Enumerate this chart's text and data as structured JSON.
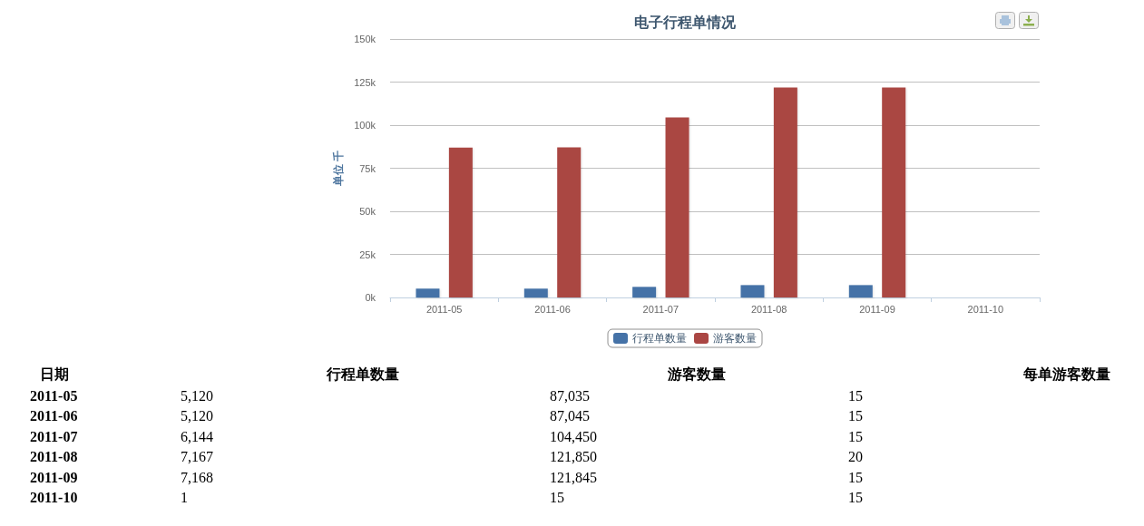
{
  "chart_data": [
    {
      "type": "bar",
      "title": "电子行程单情况",
      "ylabel": "单位 千",
      "categories": [
        "2011-05",
        "2011-06",
        "2011-07",
        "2011-08",
        "2011-09",
        "2011-10"
      ],
      "series": [
        {
          "name": "行程单数量",
          "color": "#4572a7",
          "values": [
            5120,
            5120,
            6144,
            7167,
            7168,
            1
          ]
        },
        {
          "name": "游客数量",
          "color": "#aa4643",
          "values": [
            87035,
            87045,
            104450,
            121850,
            121845,
            15
          ]
        }
      ],
      "ylim": [
        0,
        150000
      ],
      "yticks": [
        {
          "value": 0,
          "label": "0k"
        },
        {
          "value": 25000,
          "label": "25k"
        },
        {
          "value": 50000,
          "label": "50k"
        },
        {
          "value": 75000,
          "label": "75k"
        },
        {
          "value": 100000,
          "label": "100k"
        },
        {
          "value": 125000,
          "label": "125k"
        },
        {
          "value": 150000,
          "label": "150k"
        }
      ],
      "grid": "y",
      "legend": "bottom"
    },
    {
      "type": "other",
      "annotations": [
        "日期"
      ],
      "categories": [
        "2011-05",
        "2011-06",
        "2011-07",
        "2011-08",
        "2011-09",
        "2011-10"
      ],
      "series": [
        {
          "name": "行程单数量",
          "values": [
            5120,
            5120,
            6144,
            7167,
            7168,
            1
          ],
          "value_labels": [
            "5,120",
            "5,120",
            "6,144",
            "7,167",
            "7,168",
            "1"
          ]
        },
        {
          "name": "游客数量",
          "values": [
            87035,
            87045,
            104450,
            121850,
            121845,
            15
          ],
          "value_labels": [
            "87,035",
            "87,045",
            "104,450",
            "121,850",
            "121,845",
            "15"
          ]
        },
        {
          "name": "每单游客数量",
          "values": [
            15,
            15,
            15,
            20,
            15,
            15
          ],
          "value_labels": [
            "15",
            "15",
            "15",
            "20",
            "15",
            "15"
          ]
        }
      ]
    }
  ]
}
